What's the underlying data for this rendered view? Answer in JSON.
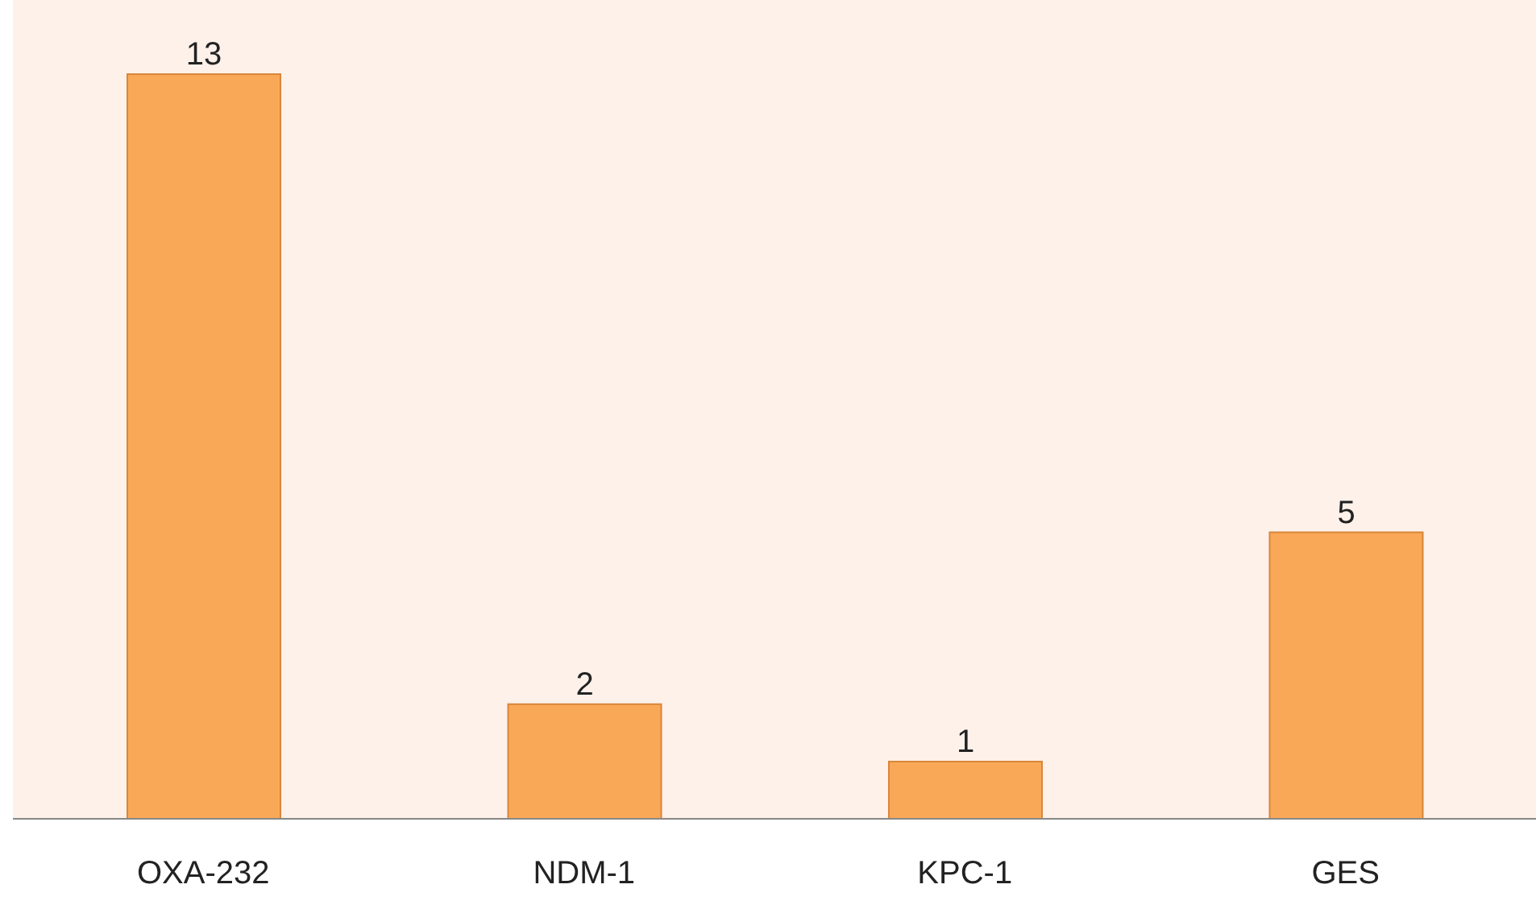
{
  "chart_data": {
    "type": "bar",
    "categories": [
      "OXA-232",
      "NDM-1",
      "KPC-1",
      "GES"
    ],
    "values": [
      13,
      2,
      1,
      5
    ],
    "color": "#f9a857",
    "data_labels": true
  }
}
